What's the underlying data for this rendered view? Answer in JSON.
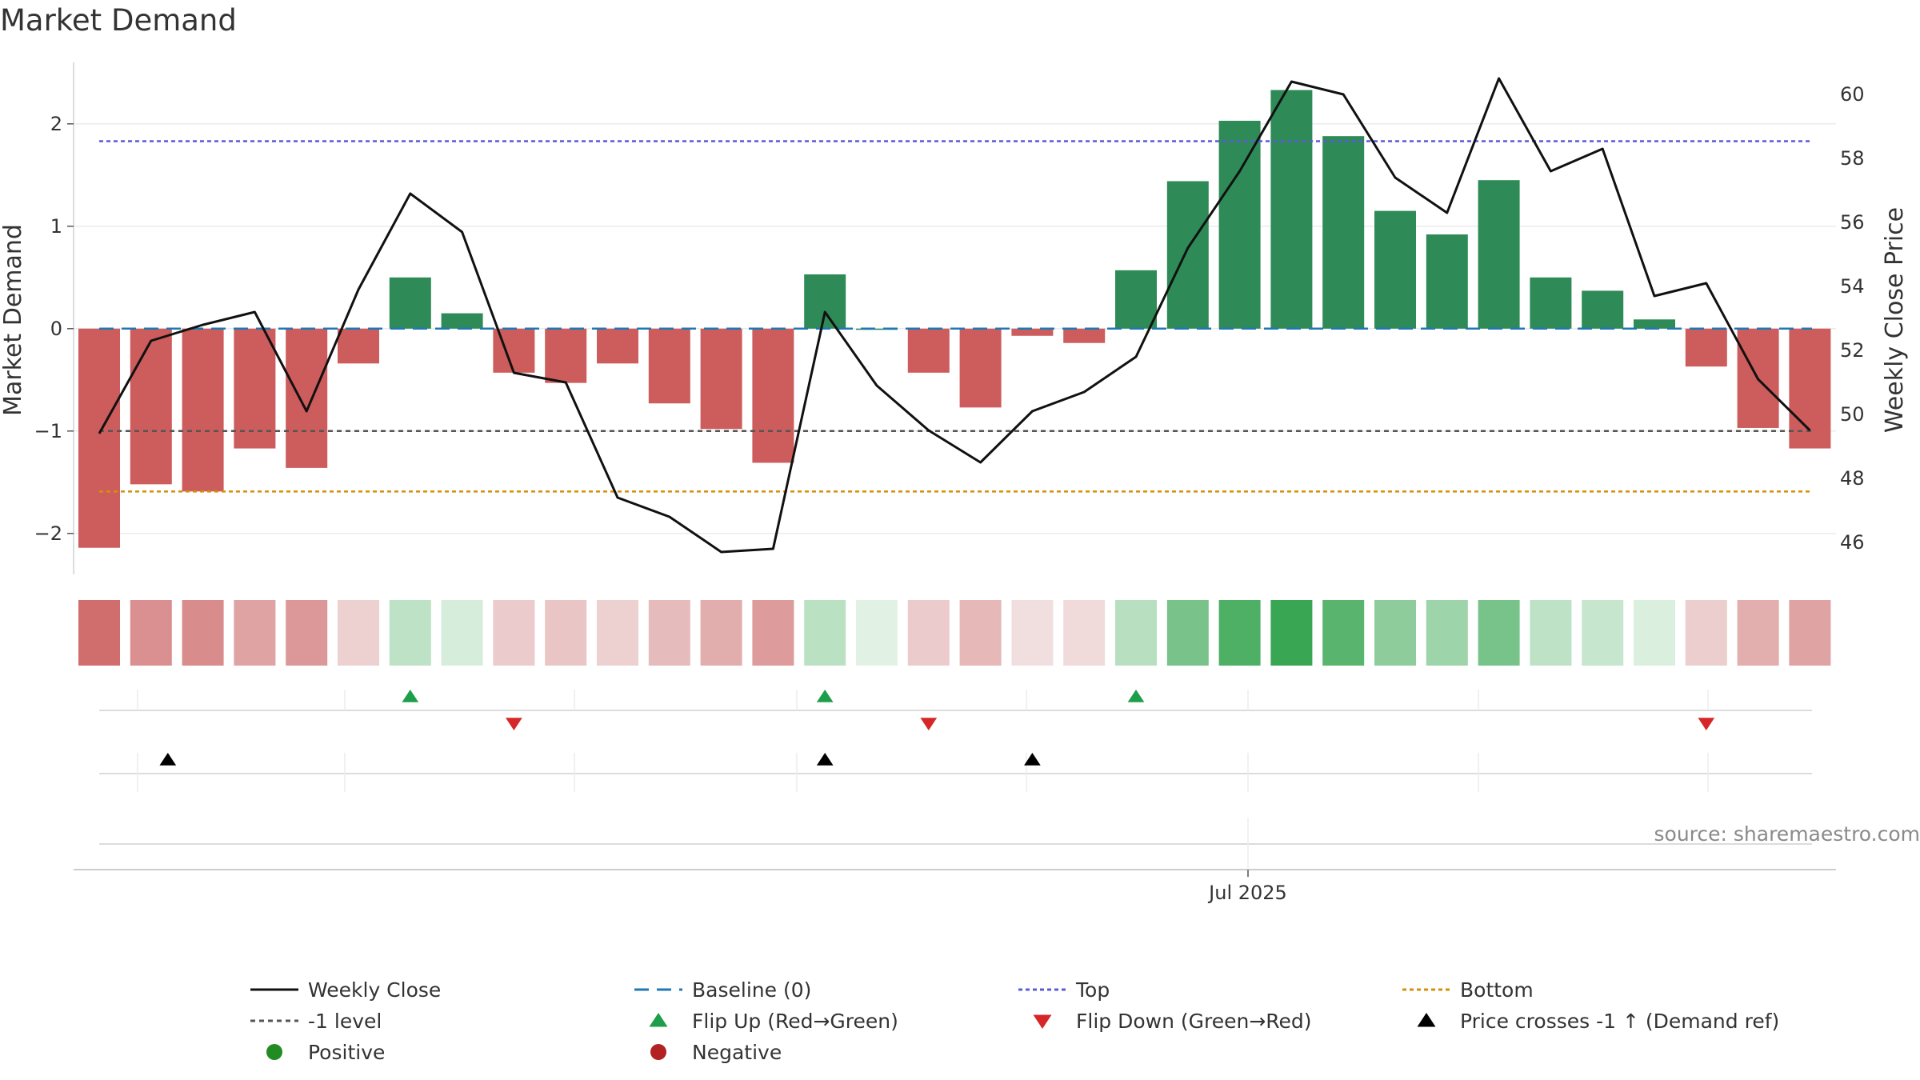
{
  "title": "Market Demand",
  "source": "source: sharemaestro.com",
  "colors": {
    "positive": "#2e8b57",
    "negative": "#cd5c5c",
    "weekly_close": "#111111",
    "baseline": "#1f77b4",
    "top": "#5b5bd6",
    "bottom": "#d4900a",
    "minus_one": "#555555",
    "flip_up": "#1e9e4a",
    "flip_down": "#d62728",
    "price_cross": "#000000"
  },
  "chart_data": {
    "type": "bar",
    "x_tick_labels": [
      "Jul 2025"
    ],
    "ylabel": "Market Demand",
    "y2label": "Weekly Close Price",
    "ylim": [
      -2.4,
      2.6
    ],
    "y2lim": [
      45.0,
      61.0
    ],
    "y_ticks": [
      -2,
      -1,
      0,
      1,
      2
    ],
    "y2_ticks": [
      46,
      48,
      50,
      52,
      54,
      56,
      58,
      60
    ],
    "grid": true,
    "legend_position": "bottom",
    "demand": [
      -2.14,
      -1.52,
      -1.59,
      -1.17,
      -1.36,
      -0.34,
      0.5,
      0.15,
      -0.43,
      -0.53,
      -0.34,
      -0.73,
      -0.98,
      -1.31,
      0.53,
      0.0,
      -0.43,
      -0.77,
      -0.07,
      -0.14,
      0.57,
      1.44,
      2.03,
      2.33,
      1.88,
      1.15,
      0.92,
      1.45,
      0.5,
      0.37,
      0.09,
      -0.37,
      -0.97,
      -1.17
    ],
    "weekly_close": [
      49.4,
      52.3,
      52.8,
      53.2,
      50.1,
      53.9,
      56.9,
      55.7,
      51.3,
      51.0,
      47.4,
      46.8,
      45.7,
      45.8,
      53.2,
      50.9,
      49.5,
      48.5,
      50.1,
      50.7,
      51.8,
      55.2,
      57.6,
      60.4,
      60.0,
      57.4,
      56.3,
      60.5,
      57.6,
      58.3,
      53.7,
      54.1,
      51.1,
      49.5
    ],
    "levels": {
      "baseline": 0,
      "top": 1.83,
      "bottom": -1.59,
      "minus_one": -1
    },
    "flip_up_indices": [
      6,
      14,
      20
    ],
    "flip_down_indices": [
      8,
      16,
      31
    ],
    "price_cross_indices": [
      1,
      14,
      18
    ],
    "legend": [
      "Weekly Close",
      "Baseline (0)",
      "Top",
      "Bottom",
      "-1 level",
      "Flip Up (Red→Green)",
      "Flip Down (Green→Red)",
      "Price crosses -1 ↑ (Demand ref)",
      "Positive",
      "Negative"
    ]
  }
}
